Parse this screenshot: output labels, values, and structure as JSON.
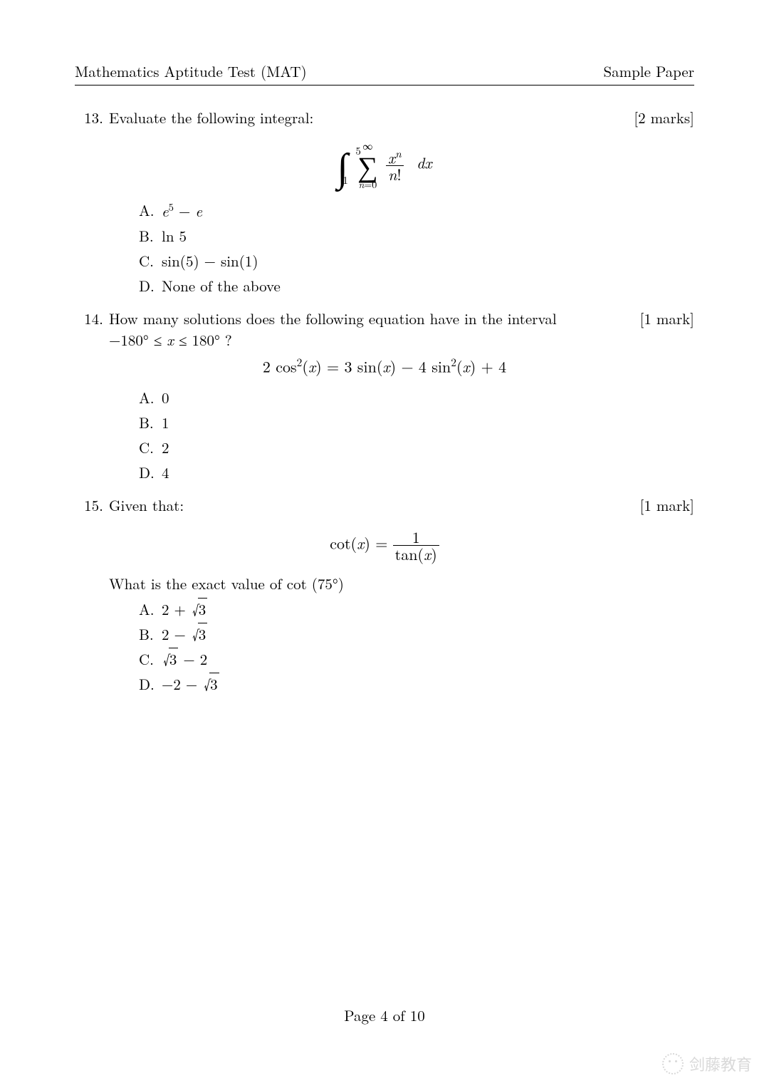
{
  "header": {
    "left": "Mathematics Aptitude Test (MAT)",
    "right": "Sample Paper"
  },
  "questions": [
    {
      "number": "13.",
      "text": "Evaluate the following integral:",
      "marks": "[2 marks]",
      "equation_html": "<span class='bigint'>∫<span class='int-up'>5</span><span class='int-lo'>1</span></span> <span class='bigsum'><span class='sup'>∞</span><span class='sigma'>∑</span><span class='sub'><span class='ital'>n</span>=0</span></span> <span class='frac'><span class='num'><span class='ital'>x</span><sup><span class='ital'>n</span></sup></span><span class='den'><span class='ital'>n</span>!</span></span> &nbsp;<span class='ital'>dx</span>",
      "choices": [
        {
          "label": "A.",
          "html": "<span class='ital'>e</span><sup>5</sup> − <span class='ital'>e</span>"
        },
        {
          "label": "B.",
          "html": "ln 5"
        },
        {
          "label": "C.",
          "html": "sin(5) − sin(1)"
        },
        {
          "label": "D.",
          "html": "None of the above"
        }
      ]
    },
    {
      "number": "14.",
      "text": "How many solutions does the following equation have in the interval",
      "text2_html": "−180° ≤ <span class='ital'>x</span> ≤ 180° ?",
      "marks": "[1 mark]",
      "equation_html": "2 cos<sup>2</sup>(<span class='ital'>x</span>) = 3 sin(<span class='ital'>x</span>) − 4 sin<sup>2</sup>(<span class='ital'>x</span>) + 4",
      "choices": [
        {
          "label": "A.",
          "html": "0"
        },
        {
          "label": "B.",
          "html": "1"
        },
        {
          "label": "C.",
          "html": "2"
        },
        {
          "label": "D.",
          "html": "4"
        }
      ]
    },
    {
      "number": "15.",
      "text": "Given that:",
      "marks": "[1 mark]",
      "equation_html": "cot(<span class='ital'>x</span>) = <span class='frac'><span class='num'>1</span><span class='den'>tan(<span class='ital'>x</span>)</span></span>",
      "text_after": "What is the exact value of cot (75°)",
      "choices": [
        {
          "label": "A.",
          "html": "2 + <span class='sqrt'>√<span class='rad'>3</span></span>"
        },
        {
          "label": "B.",
          "html": "2 − <span class='sqrt'>√<span class='rad'>3</span></span>"
        },
        {
          "label": "C.",
          "html": "<span class='sqrt'>√<span class='rad'>3</span></span> − 2"
        },
        {
          "label": "D.",
          "html": "−2 − <span class='sqrt'>√<span class='rad'>3</span></span>"
        }
      ]
    }
  ],
  "footer": "Page 4 of 10",
  "watermark": "剑藤教育"
}
